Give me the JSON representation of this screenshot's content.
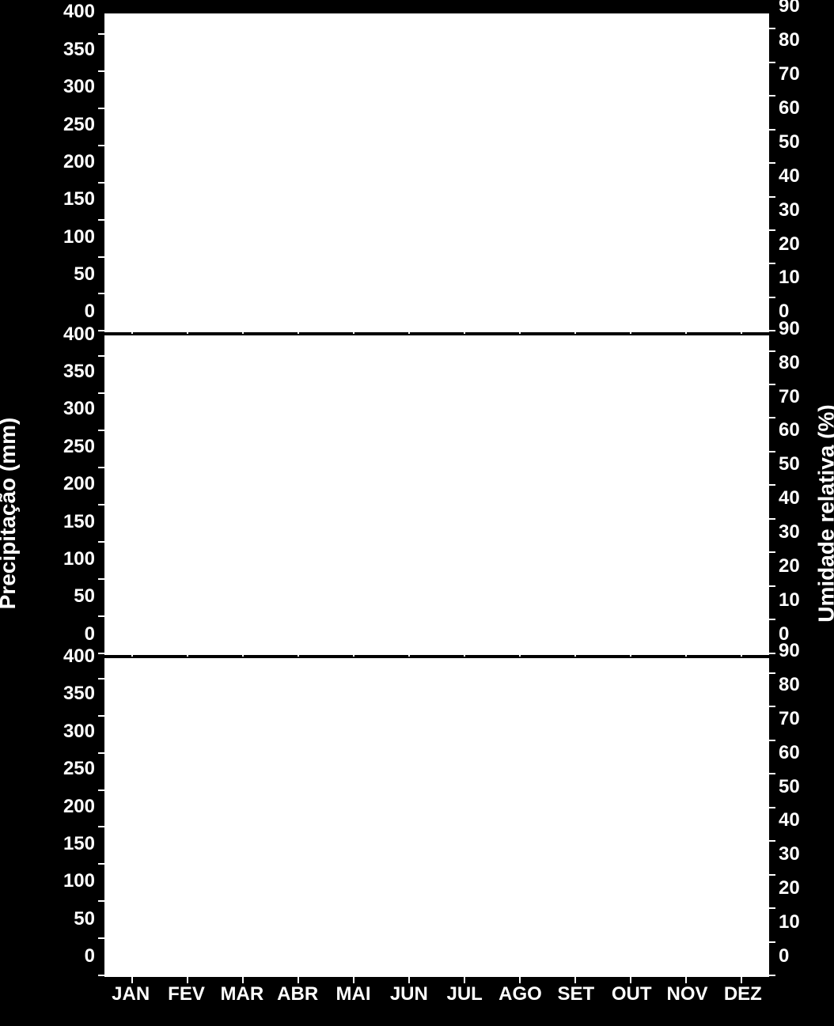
{
  "figure": {
    "background_color": "#000000",
    "text_color": "#ffffff",
    "plot_background": "#ffffff",
    "font_family": "Arial",
    "tick_fontsize": 24,
    "axis_title_fontsize": 28,
    "y_left_title": "Precipitação (mm)",
    "y_right_title": "Umidade relativa (%)",
    "panels_count": 3,
    "y_left": {
      "lim": [
        0,
        430
      ],
      "ticks": [
        0,
        50,
        100,
        150,
        200,
        250,
        300,
        350,
        400
      ]
    },
    "y_right": {
      "lim": [
        0,
        95
      ],
      "ticks": [
        0,
        10,
        20,
        30,
        40,
        50,
        60,
        70,
        80,
        90
      ]
    },
    "x_categories": [
      "JAN",
      "FEV",
      "MAR",
      "ABR",
      "MAI",
      "JUN",
      "JUL",
      "AGO",
      "SET",
      "OUT",
      "NOV",
      "DEZ"
    ]
  }
}
